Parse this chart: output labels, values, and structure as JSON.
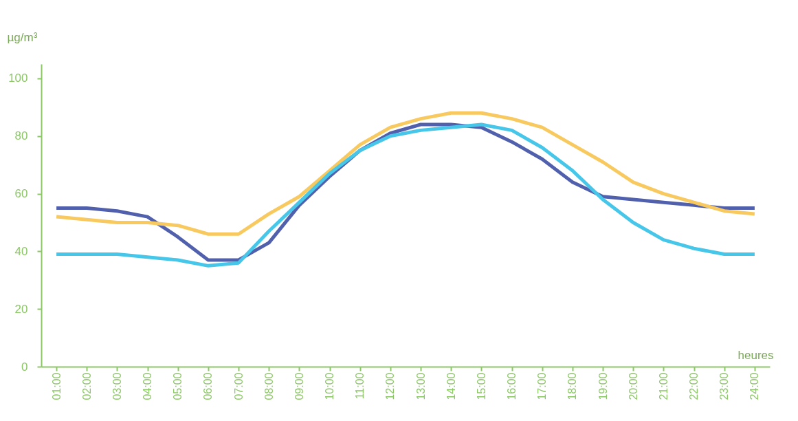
{
  "chart_data": {
    "type": "line",
    "xlabel": "heures",
    "ylabel": "µg/m³",
    "categories": [
      "01:00",
      "02:00",
      "03:00",
      "04:00",
      "05:00",
      "06:00",
      "07:00",
      "08:00",
      "09:00",
      "10:00",
      "11:00",
      "12:00",
      "13:00",
      "14:00",
      "15:00",
      "16:00",
      "17:00",
      "18:00",
      "19:00",
      "20:00",
      "21:00",
      "22:00",
      "23:00",
      "24:00"
    ],
    "series": [
      {
        "color": "#5060ad",
        "values": [
          55,
          55,
          54,
          52,
          45,
          37,
          37,
          43,
          56,
          66,
          75,
          81,
          84,
          84,
          83,
          78,
          72,
          64,
          59,
          58,
          57,
          56,
          55,
          55
        ]
      },
      {
        "color": "#f8c95f",
        "values": [
          52,
          51,
          50,
          50,
          49,
          46,
          46,
          53,
          59,
          68,
          77,
          83,
          86,
          88,
          88,
          86,
          83,
          77,
          71,
          64,
          60,
          57,
          54,
          53
        ]
      },
      {
        "color": "#46c6e9",
        "values": [
          39,
          39,
          39,
          38,
          37,
          35,
          36,
          47,
          57,
          67,
          75,
          80,
          82,
          83,
          84,
          82,
          76,
          68,
          58,
          50,
          44,
          41,
          39,
          39
        ]
      }
    ],
    "ylim": [
      0,
      105
    ],
    "yticks": [
      0,
      20,
      40,
      60,
      80,
      100
    ],
    "grid": false,
    "legend": false,
    "marker": "none",
    "line_style": "solid"
  }
}
